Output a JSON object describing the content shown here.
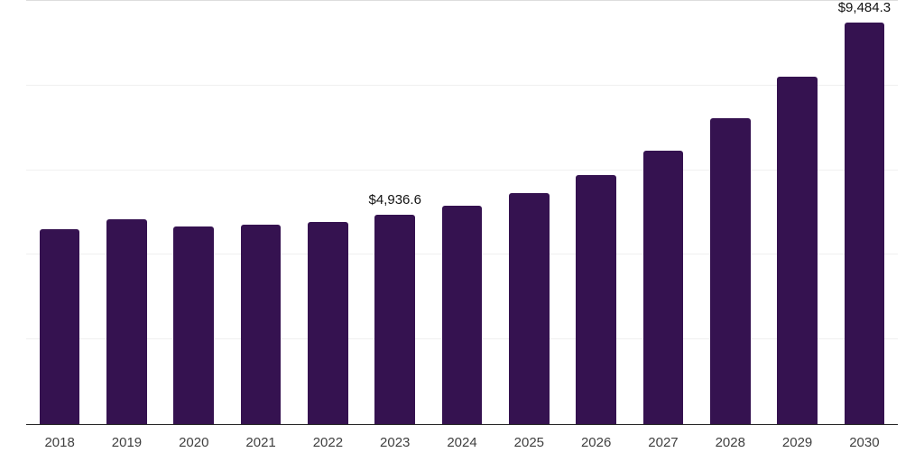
{
  "chart_data": {
    "type": "bar",
    "title": "",
    "xlabel": "",
    "ylabel": "",
    "categories": [
      "2018",
      "2019",
      "2020",
      "2021",
      "2022",
      "2023",
      "2024",
      "2025",
      "2026",
      "2027",
      "2028",
      "2029",
      "2030"
    ],
    "values": [
      4600,
      4830,
      4660,
      4705,
      4775,
      4936.6,
      5155,
      5465,
      5880,
      6455,
      7225,
      8205,
      9484.3
    ],
    "value_labels": {
      "2023": "$4,936.6",
      "2030": "$9,484.3"
    },
    "ylim": [
      0,
      10000
    ],
    "gridline_step": 2000,
    "grid": "horizontal-only",
    "legend": "none",
    "y_axis_ticks_visible": false,
    "baseline_visible": true
  },
  "colors": {
    "background": "#ffffff",
    "bar": "#351250",
    "gridline": "#f0f0f0",
    "top_gridline": "#dddddd",
    "axis_line": "#262626",
    "tick_label": "#404040",
    "data_label": "#111111"
  }
}
